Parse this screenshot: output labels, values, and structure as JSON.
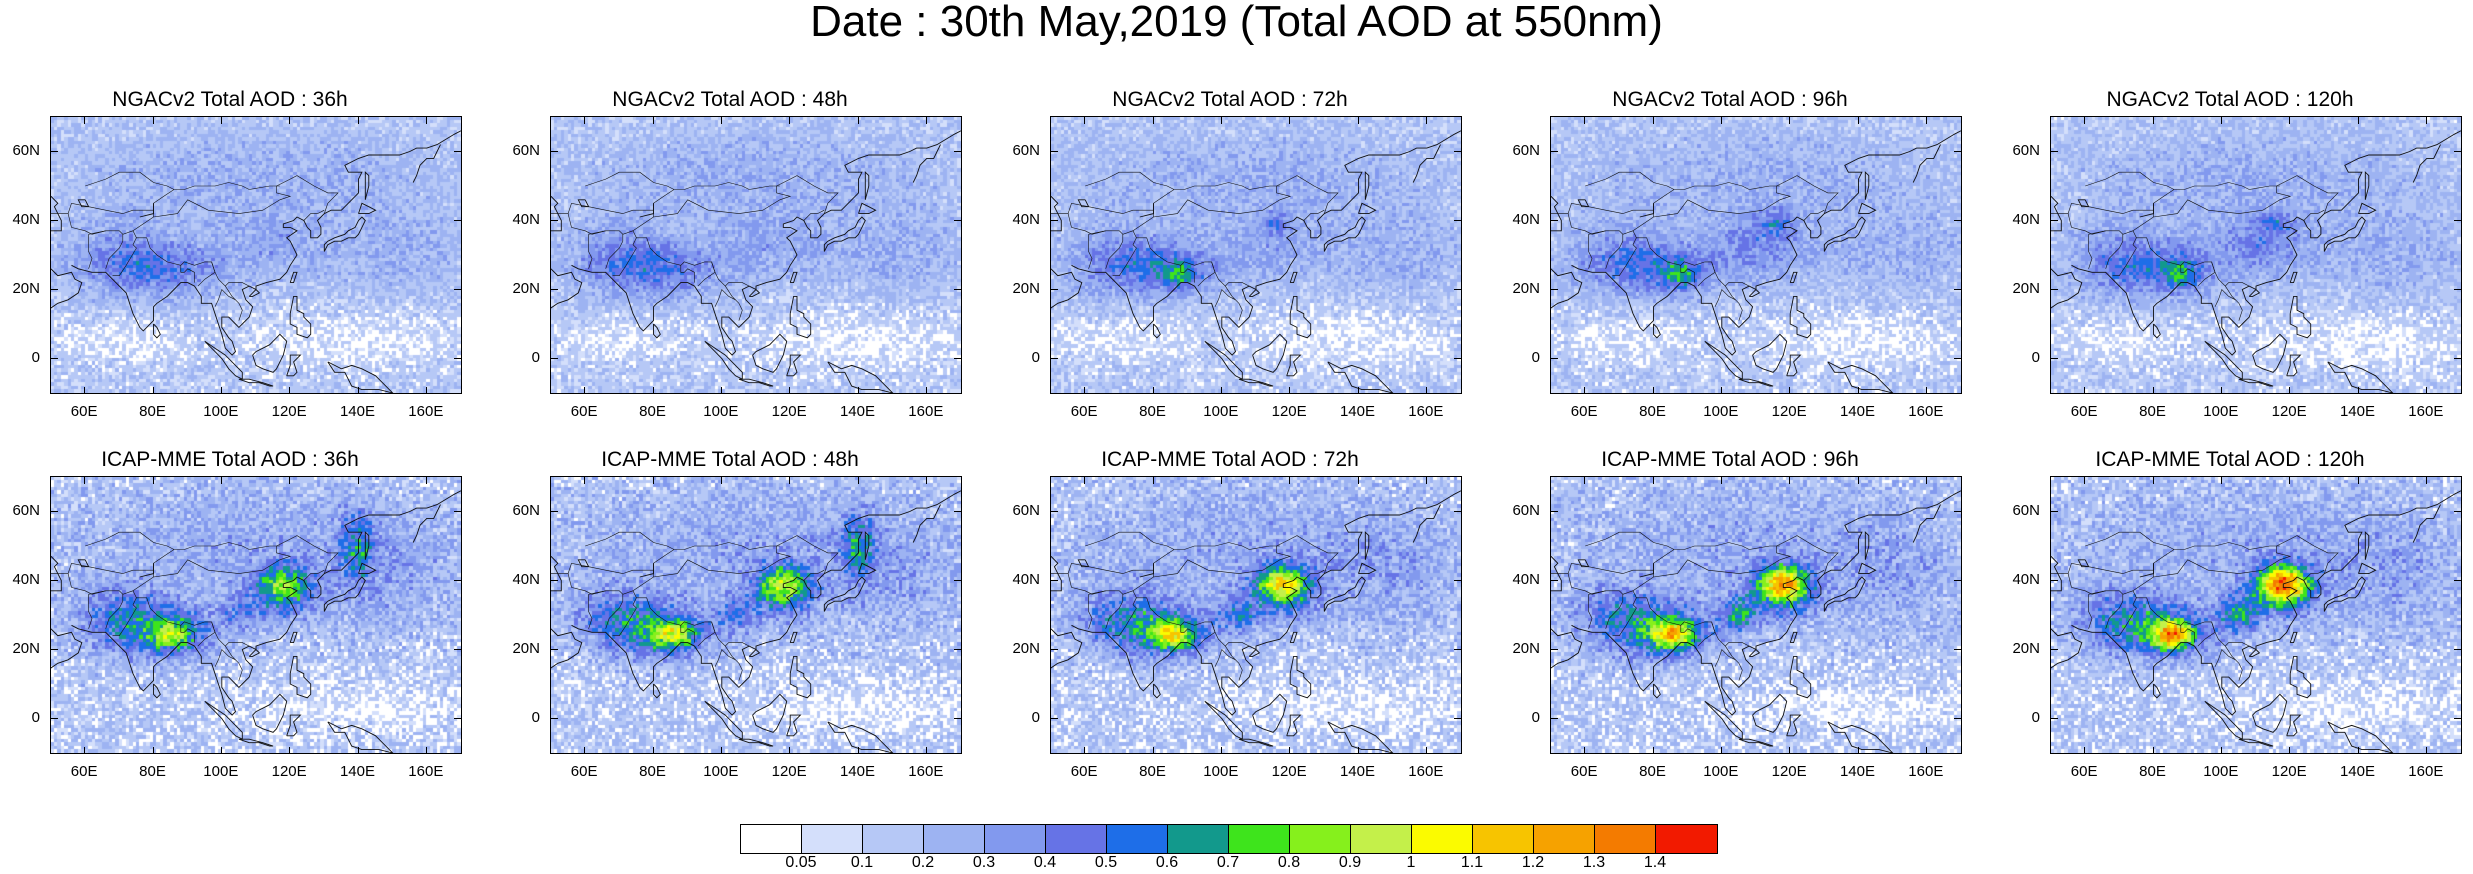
{
  "title": "Date : 30th May,2019 (Total AOD at 550nm)",
  "x_ticks": [
    "60E",
    "80E",
    "100E",
    "120E",
    "140E",
    "160E"
  ],
  "x_tick_lon": [
    60,
    80,
    100,
    120,
    140,
    160
  ],
  "y_ticks": [
    "60N",
    "40N",
    "20N",
    "0"
  ],
  "y_tick_lat": [
    60,
    40,
    20,
    0
  ],
  "lon_range": [
    50,
    170
  ],
  "lat_range": [
    -10,
    70
  ],
  "panels": [
    {
      "title": "NGACv2 Total AOD : 36h",
      "model": "ngac",
      "lead": 36
    },
    {
      "title": "NGACv2 Total AOD : 48h",
      "model": "ngac",
      "lead": 48
    },
    {
      "title": "NGACv2 Total AOD : 72h",
      "model": "ngac",
      "lead": 72
    },
    {
      "title": "NGACv2 Total AOD : 96h",
      "model": "ngac",
      "lead": 96
    },
    {
      "title": "NGACv2 Total AOD : 120h",
      "model": "ngac",
      "lead": 120
    },
    {
      "title": "ICAP-MME Total AOD : 36h",
      "model": "icap",
      "lead": 36
    },
    {
      "title": "ICAP-MME Total AOD : 48h",
      "model": "icap",
      "lead": 48
    },
    {
      "title": "ICAP-MME Total AOD : 72h",
      "model": "icap",
      "lead": 72
    },
    {
      "title": "ICAP-MME Total AOD : 96h",
      "model": "icap",
      "lead": 96
    },
    {
      "title": "ICAP-MME Total AOD : 120h",
      "model": "icap",
      "lead": 120
    }
  ],
  "colorbar": {
    "labels": [
      "0.05",
      "0.1",
      "0.2",
      "0.3",
      "0.4",
      "0.5",
      "0.6",
      "0.7",
      "0.8",
      "0.9",
      "1",
      "1.1",
      "1.2",
      "1.3",
      "1.4"
    ],
    "colors": [
      "#ffffff",
      "#d4dffb",
      "#b6c8f6",
      "#9db3f2",
      "#8299ee",
      "#6673e6",
      "#1e6ee8",
      "#12998c",
      "#3ee41c",
      "#86f01c",
      "#c4f04a",
      "#fbfb00",
      "#f7c400",
      "#f6a200",
      "#f47b00",
      "#f21a00"
    ]
  }
}
